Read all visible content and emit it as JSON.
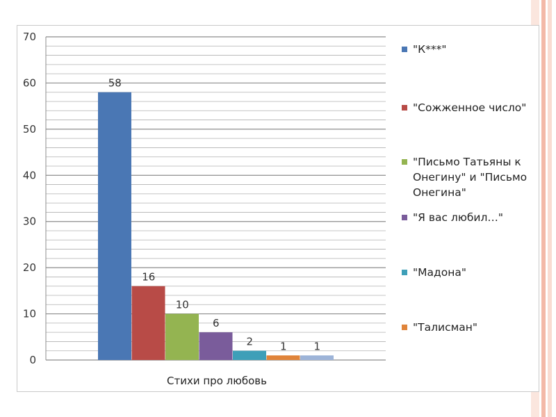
{
  "colors": {
    "background": "#ffffff",
    "side_stripe_light": "#f9dcd2",
    "side_stripe_dark": "#f3b9a8",
    "grid": "#9a9a9a"
  },
  "chart_data": {
    "type": "bar",
    "categories": [
      "Стихи про любовь"
    ],
    "series": [
      {
        "name": "\"К***\"",
        "values": [
          58
        ],
        "color": "#4a77b4"
      },
      {
        "name": "\"Сожженное число\"",
        "values": [
          16
        ],
        "color": "#b84b47"
      },
      {
        "name": "\"Письмо Татьяны к Онегину\" и \"Письмо Онегина\"",
        "values": [
          10
        ],
        "color": "#94b451"
      },
      {
        "name": "\"Я вас любил…\"",
        "values": [
          6
        ],
        "color": "#7a5c9b"
      },
      {
        "name": "\"Мадона\"",
        "values": [
          2
        ],
        "color": "#3e9fb8"
      },
      {
        "name": "\"Талисман\"",
        "values": [
          1
        ],
        "color": "#e0843a"
      },
      {
        "name": "",
        "values": [
          1
        ],
        "color": "#9db4d8"
      }
    ],
    "data_labels": [
      "58",
      "16",
      "10",
      "6",
      "2",
      "1",
      "1"
    ],
    "y_ticks": [
      "0",
      "10",
      "20",
      "30",
      "40",
      "50",
      "60",
      "70"
    ],
    "ylim": [
      0,
      70
    ],
    "minor_grid_step": 2,
    "grid": true,
    "legend_position": "right",
    "title": "",
    "xlabel": "",
    "ylabel": ""
  }
}
